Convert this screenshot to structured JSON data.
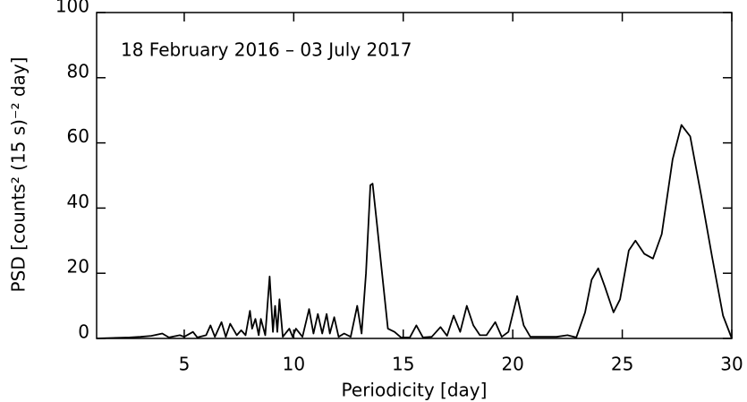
{
  "chart_data": {
    "type": "line",
    "annotation": "18 February 2016 – 03 July 2017",
    "x_label": "Periodicity [day]",
    "y_label": "PSD [counts² (15 s)⁻² day]",
    "xlim": [
      1,
      30
    ],
    "xticks": [
      5,
      10,
      15,
      20,
      25,
      30
    ],
    "ylim": [
      0,
      100
    ],
    "yticks": [
      0,
      20,
      40,
      60,
      80,
      100
    ],
    "series": [
      {
        "color": "#000000",
        "x": [
          1.0,
          2.5,
          3.0,
          3.5,
          4.0,
          4.3,
          4.8,
          5.0,
          5.4,
          5.6,
          6.0,
          6.2,
          6.4,
          6.7,
          6.9,
          7.1,
          7.4,
          7.6,
          7.8,
          8.0,
          8.1,
          8.25,
          8.4,
          8.5,
          8.7,
          8.9,
          9.05,
          9.15,
          9.25,
          9.35,
          9.5,
          9.8,
          9.95,
          10.1,
          10.4,
          10.7,
          10.9,
          11.1,
          11.3,
          11.5,
          11.65,
          11.85,
          12.05,
          12.3,
          12.6,
          12.9,
          13.1,
          13.3,
          13.5,
          13.6,
          13.8,
          14.0,
          14.3,
          14.6,
          14.9,
          15.3,
          15.6,
          15.9,
          16.3,
          16.7,
          17.0,
          17.3,
          17.6,
          17.9,
          18.2,
          18.5,
          18.8,
          19.2,
          19.5,
          19.8,
          20.2,
          20.5,
          20.8,
          21.3,
          22.0,
          22.5,
          22.9,
          23.3,
          23.6,
          23.9,
          24.2,
          24.6,
          24.9,
          25.3,
          25.6,
          26.0,
          26.4,
          26.8,
          27.3,
          27.7,
          28.1,
          28.6,
          29.1,
          29.6,
          30.0
        ],
        "values": [
          0,
          0.3,
          0.5,
          0.8,
          1.5,
          0.3,
          1,
          0.5,
          2,
          0.3,
          1,
          4,
          0.5,
          5,
          0.5,
          4.5,
          1,
          2.5,
          1,
          8.5,
          3,
          6,
          1,
          6,
          1,
          19,
          2,
          10,
          2,
          12,
          0.5,
          3,
          0.5,
          3,
          0.5,
          9,
          1.5,
          7.5,
          1.5,
          7.5,
          1.5,
          6.5,
          0.5,
          1.5,
          0.5,
          10,
          1.5,
          20,
          47,
          47.5,
          35,
          22,
          3,
          2,
          0.3,
          0.3,
          4,
          0.3,
          0.5,
          3.5,
          0.8,
          7,
          2,
          10,
          4,
          1,
          1,
          5,
          0.5,
          2,
          13,
          4,
          0.5,
          0.5,
          0.5,
          1,
          0.3,
          8,
          18,
          21.5,
          16,
          8,
          12,
          27,
          30,
          26,
          24.5,
          32,
          55,
          65.5,
          62,
          44,
          25,
          7,
          0
        ]
      }
    ]
  }
}
